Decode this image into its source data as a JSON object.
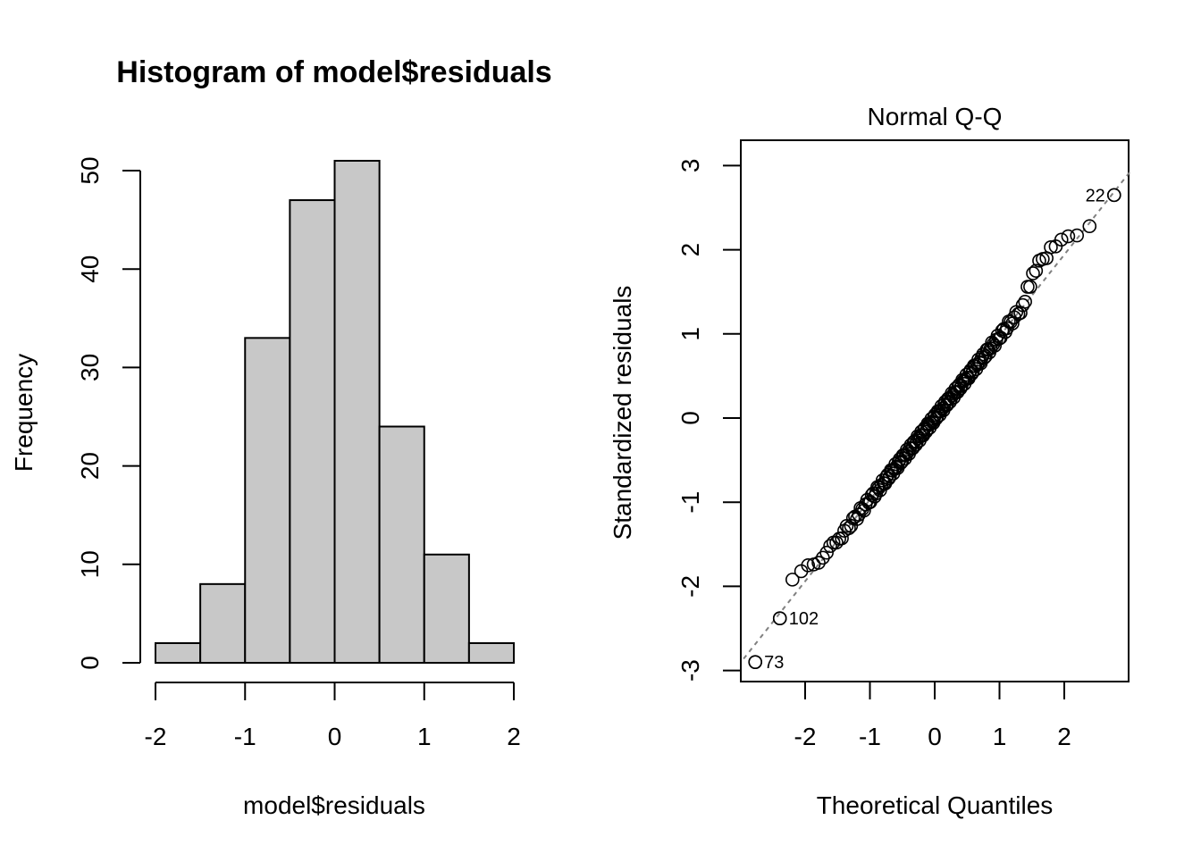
{
  "chart_data": [
    {
      "type": "bar",
      "title": "Histogram of model$residuals",
      "xlabel": "model$residuals",
      "ylabel": "Frequency",
      "bin_edges": [
        -2,
        -1.5,
        -1,
        -0.5,
        0,
        0.5,
        1,
        1.5,
        2
      ],
      "values": [
        2,
        8,
        33,
        47,
        51,
        24,
        11,
        2
      ],
      "xlim": [
        -2,
        2
      ],
      "ylim": [
        0,
        50
      ],
      "xticks": [
        -2,
        -1,
        0,
        1,
        2
      ],
      "xtick_labels": [
        "-2",
        "-1",
        "0",
        "1",
        "2"
      ],
      "yticks": [
        0,
        10,
        20,
        30,
        40,
        50
      ],
      "ytick_labels": [
        "0",
        "10",
        "20",
        "30",
        "40",
        "50"
      ],
      "bar_fill": "#c8c8c8",
      "grid": false
    },
    {
      "type": "scatter",
      "title": "Normal Q-Q",
      "xlabel": "Theoretical Quantiles",
      "ylabel": "Standardized residuals",
      "xlim": [
        -2.9,
        3.0
      ],
      "ylim": [
        -3.1,
        3.3
      ],
      "xticks": [
        -2,
        -1,
        0,
        1,
        2
      ],
      "xtick_labels": [
        "-2",
        "-1",
        "0",
        "1",
        "2"
      ],
      "yticks": [
        -3,
        -2,
        -1,
        0,
        1,
        2,
        3
      ],
      "ytick_labels": [
        "-3",
        "-2",
        "-1",
        "0",
        "1",
        "2",
        "3"
      ],
      "n_points": 178,
      "reference_line": {
        "intercept": 0,
        "slope": 0.97,
        "style": "dashed",
        "color": "#808080"
      },
      "labeled_points": [
        {
          "label": "73",
          "x": -2.77,
          "y": -2.9
        },
        {
          "label": "102",
          "x": -2.39,
          "y": -2.38
        },
        {
          "label": "22",
          "x": 2.77,
          "y": 2.65
        }
      ],
      "upper_tail": [
        {
          "x": 2.39,
          "y": 2.28
        },
        {
          "x": 2.2,
          "y": 2.17
        },
        {
          "x": 2.08,
          "y": 2.16
        },
        {
          "x": 1.98,
          "y": 2.12
        },
        {
          "x": 1.89,
          "y": 2.04
        },
        {
          "x": 1.81,
          "y": 2.03
        },
        {
          "x": 1.74,
          "y": 1.9
        },
        {
          "x": 1.67,
          "y": 1.89
        },
        {
          "x": 1.61,
          "y": 1.87
        },
        {
          "x": 1.55,
          "y": 1.75
        },
        {
          "x": 1.5,
          "y": 1.72
        },
        {
          "x": 1.45,
          "y": 1.56
        }
      ],
      "lower_tail": [
        {
          "x": -2.2,
          "y": -1.92
        },
        {
          "x": -2.08,
          "y": -1.82
        },
        {
          "x": -1.98,
          "y": -1.75
        },
        {
          "x": -1.89,
          "y": -1.74
        },
        {
          "x": -1.81,
          "y": -1.72
        },
        {
          "x": -1.74,
          "y": -1.66
        },
        {
          "x": -1.67,
          "y": -1.6
        },
        {
          "x": -1.61,
          "y": -1.52
        },
        {
          "x": -1.55,
          "y": -1.48
        }
      ],
      "grid": false
    }
  ]
}
